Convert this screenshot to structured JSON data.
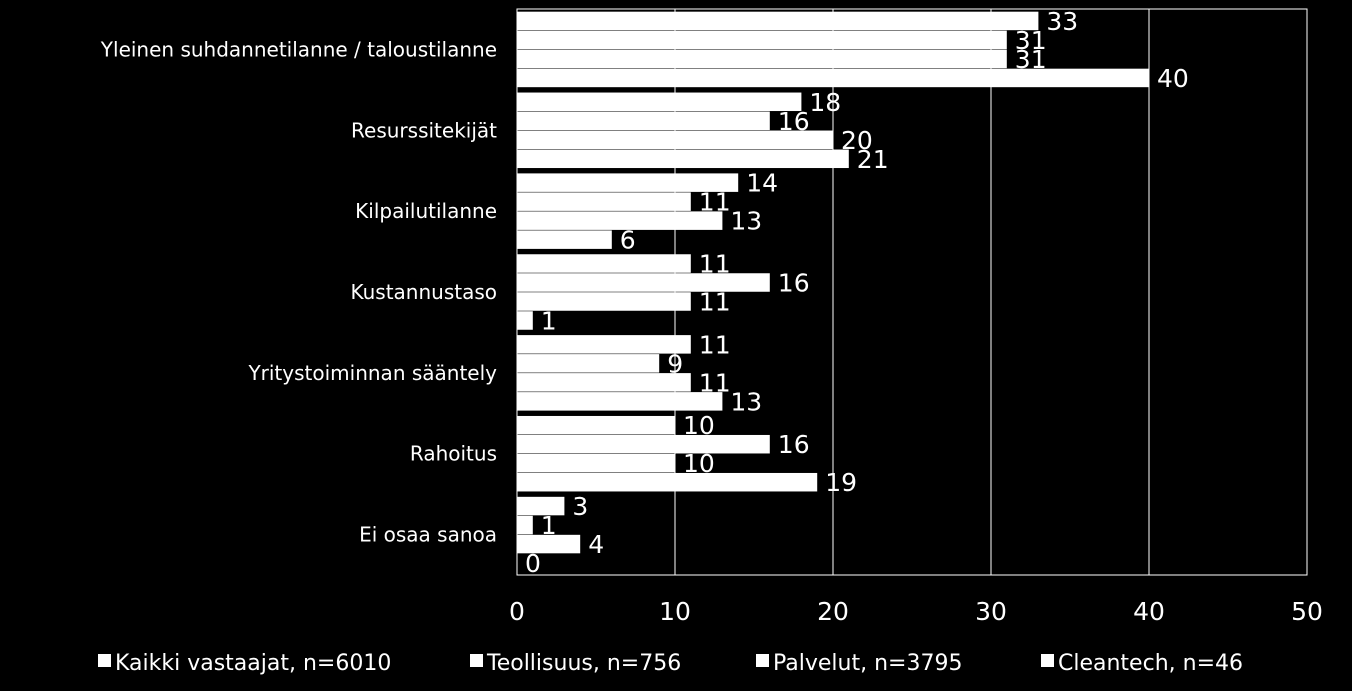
{
  "chart_data": {
    "type": "bar",
    "orientation": "horizontal",
    "categories": [
      "Yleinen suhdannetilanne / taloustilanne",
      "Resurssitekijät",
      "Kilpailutilanne",
      "Kustannustaso",
      "Yritystoiminnan sääntely",
      "Rahoitus",
      "Ei osaa sanoa"
    ],
    "series": [
      {
        "name": "Kaikki vastaajat, n=6010",
        "values": [
          33,
          18,
          14,
          11,
          11,
          10,
          3
        ]
      },
      {
        "name": "Teollisuus, n=756",
        "values": [
          31,
          16,
          11,
          16,
          9,
          16,
          1
        ]
      },
      {
        "name": "Palvelut, n=3795",
        "values": [
          31,
          20,
          13,
          11,
          11,
          10,
          4
        ]
      },
      {
        "name": "Cleantech, n=46",
        "values": [
          40,
          21,
          6,
          1,
          13,
          19,
          0
        ]
      }
    ],
    "xlim": [
      0,
      50
    ],
    "xticks": [
      0,
      10,
      20,
      30,
      40,
      50
    ],
    "grid": "vertical",
    "legend": "bottom",
    "colors": {
      "background": "#000000",
      "bar": "#ffffff",
      "text": "#ffffff",
      "grid": "#ffffff"
    }
  }
}
